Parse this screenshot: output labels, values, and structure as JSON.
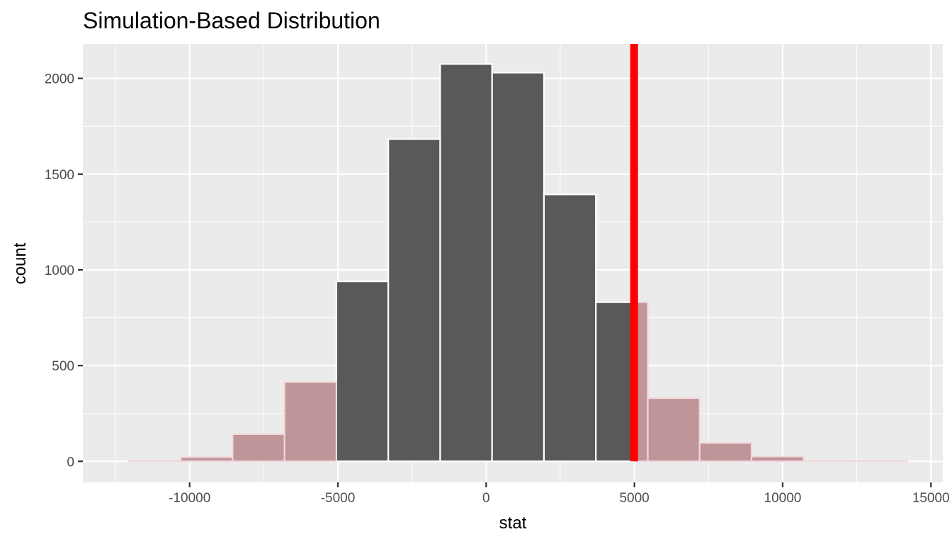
{
  "chart_data": {
    "type": "bar",
    "title": "Simulation-Based Distribution",
    "xlabel": "stat",
    "ylabel": "count",
    "xlim": [
      -13600,
      15400
    ],
    "ylim": [
      -110,
      2180
    ],
    "x_ticks": [
      -10000,
      -5000,
      0,
      5000,
      10000,
      15000
    ],
    "x_tick_labels": [
      "-10000",
      "-5000",
      "0",
      "5000",
      "10000",
      "15000"
    ],
    "y_ticks": [
      0,
      500,
      1000,
      1500,
      2000
    ],
    "y_tick_labels": [
      "0",
      "500",
      "1000",
      "1500",
      "2000"
    ],
    "bins": [
      {
        "x0": -12050,
        "x1": -10300,
        "count": 3,
        "shaded": true
      },
      {
        "x0": -10300,
        "x1": -8550,
        "count": 22,
        "shaded": true
      },
      {
        "x0": -8550,
        "x1": -6800,
        "count": 142,
        "shaded": true
      },
      {
        "x0": -6800,
        "x1": -5050,
        "count": 414,
        "shaded": true
      },
      {
        "x0": -5050,
        "x1": -3300,
        "count": 940,
        "shaded": false
      },
      {
        "x0": -3300,
        "x1": -1550,
        "count": 1683,
        "shaded": false
      },
      {
        "x0": -1550,
        "x1": 200,
        "count": 2075,
        "shaded": false
      },
      {
        "x0": 200,
        "x1": 1950,
        "count": 2030,
        "shaded": false
      },
      {
        "x0": 1950,
        "x1": 3700,
        "count": 1394,
        "shaded": false
      },
      {
        "x0": 3700,
        "x1": 5450,
        "count": 831,
        "shaded": false
      },
      {
        "x0": 5450,
        "x1": 7200,
        "count": 330,
        "shaded": true
      },
      {
        "x0": 7200,
        "x1": 8950,
        "count": 96,
        "shaded": true
      },
      {
        "x0": 8950,
        "x1": 10700,
        "count": 25,
        "shaded": true
      },
      {
        "x0": 10700,
        "x1": 12450,
        "count": 3,
        "shaded": true
      },
      {
        "x0": 12450,
        "x1": 14200,
        "count": 1,
        "shaded": true
      }
    ],
    "observed_stat": 4990,
    "grid": true,
    "colors": {
      "panel": "#ebebeb",
      "grid": "#ffffff",
      "bar_fill": "#595959",
      "bar_outline": "#ffffff",
      "shade_fill": "#bf9599",
      "shade_outline": "#f0d8db",
      "observed_line": "#ff0000"
    }
  }
}
